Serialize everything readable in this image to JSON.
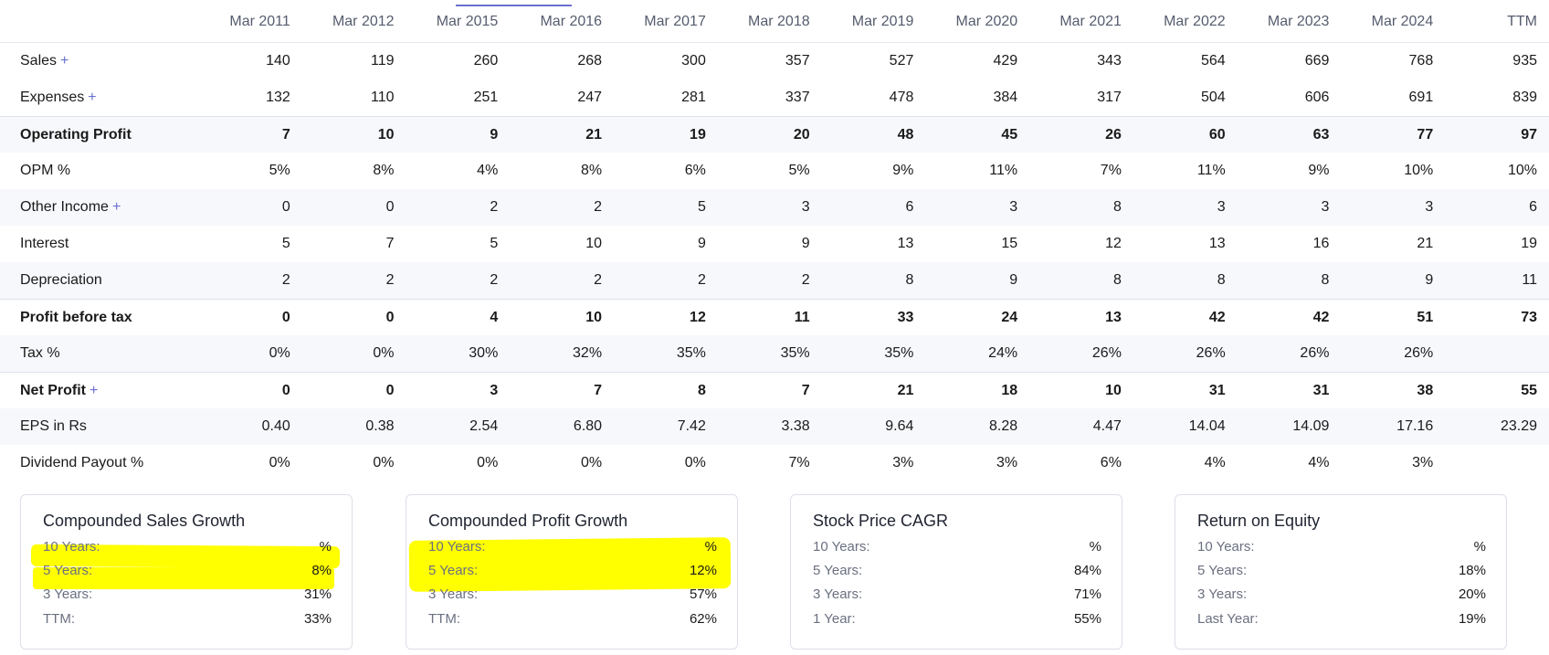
{
  "columns": [
    "Mar 2011",
    "Mar 2012",
    "Mar 2015",
    "Mar 2016",
    "Mar 2017",
    "Mar 2018",
    "Mar 2019",
    "Mar 2020",
    "Mar 2021",
    "Mar 2022",
    "Mar 2023",
    "Mar 2024",
    "TTM"
  ],
  "rows": [
    {
      "label": "Sales",
      "plus": "+",
      "values": [
        "140",
        "119",
        "260",
        "268",
        "300",
        "357",
        "527",
        "429",
        "343",
        "564",
        "669",
        "768",
        "935"
      ]
    },
    {
      "label": "Expenses",
      "plus": "+",
      "values": [
        "132",
        "110",
        "251",
        "247",
        "281",
        "337",
        "478",
        "384",
        "317",
        "504",
        "606",
        "691",
        "839"
      ]
    },
    {
      "label": "Operating Profit",
      "plus": "",
      "values": [
        "7",
        "10",
        "9",
        "21",
        "19",
        "20",
        "48",
        "45",
        "26",
        "60",
        "63",
        "77",
        "97"
      ]
    },
    {
      "label": "OPM %",
      "plus": "",
      "values": [
        "5%",
        "8%",
        "4%",
        "8%",
        "6%",
        "5%",
        "9%",
        "11%",
        "7%",
        "11%",
        "9%",
        "10%",
        "10%"
      ]
    },
    {
      "label": "Other Income",
      "plus": "+",
      "values": [
        "0",
        "0",
        "2",
        "2",
        "5",
        "3",
        "6",
        "3",
        "8",
        "3",
        "3",
        "3",
        "6"
      ]
    },
    {
      "label": "Interest",
      "plus": "",
      "values": [
        "5",
        "7",
        "5",
        "10",
        "9",
        "9",
        "13",
        "15",
        "12",
        "13",
        "16",
        "21",
        "19"
      ]
    },
    {
      "label": "Depreciation",
      "plus": "",
      "values": [
        "2",
        "2",
        "2",
        "2",
        "2",
        "2",
        "8",
        "9",
        "8",
        "8",
        "8",
        "9",
        "11"
      ]
    },
    {
      "label": "Profit before tax",
      "plus": "",
      "values": [
        "0",
        "0",
        "4",
        "10",
        "12",
        "11",
        "33",
        "24",
        "13",
        "42",
        "42",
        "51",
        "73"
      ]
    },
    {
      "label": "Tax %",
      "plus": "",
      "values": [
        "0%",
        "0%",
        "30%",
        "32%",
        "35%",
        "35%",
        "35%",
        "24%",
        "26%",
        "26%",
        "26%",
        "26%",
        ""
      ]
    },
    {
      "label": "Net Profit",
      "plus": "+",
      "values": [
        "0",
        "0",
        "3",
        "7",
        "8",
        "7",
        "21",
        "18",
        "10",
        "31",
        "31",
        "38",
        "55"
      ]
    },
    {
      "label": "EPS in Rs",
      "plus": "",
      "values": [
        "0.40",
        "0.38",
        "2.54",
        "6.80",
        "7.42",
        "3.38",
        "9.64",
        "8.28",
        "4.47",
        "14.04",
        "14.09",
        "17.16",
        "23.29"
      ]
    },
    {
      "label": "Dividend Payout %",
      "plus": "",
      "values": [
        "0%",
        "0%",
        "0%",
        "0%",
        "0%",
        "7%",
        "3%",
        "3%",
        "6%",
        "4%",
        "4%",
        "3%",
        ""
      ]
    }
  ],
  "cards": [
    {
      "title": "Compounded Sales Growth",
      "rows": [
        {
          "k": "10 Years:",
          "v": "%"
        },
        {
          "k": "5 Years:",
          "v": "8%"
        },
        {
          "k": "3 Years:",
          "v": "31%"
        },
        {
          "k": "TTM:",
          "v": "33%"
        }
      ]
    },
    {
      "title": "Compounded Profit Growth",
      "rows": [
        {
          "k": "10 Years:",
          "v": "%"
        },
        {
          "k": "5 Years:",
          "v": "12%"
        },
        {
          "k": "3 Years:",
          "v": "57%"
        },
        {
          "k": "TTM:",
          "v": "62%"
        }
      ]
    },
    {
      "title": "Stock Price CAGR",
      "rows": [
        {
          "k": "10 Years:",
          "v": "%"
        },
        {
          "k": "5 Years:",
          "v": "84%"
        },
        {
          "k": "3 Years:",
          "v": "71%"
        },
        {
          "k": "1 Year:",
          "v": "55%"
        }
      ]
    },
    {
      "title": "Return on Equity",
      "rows": [
        {
          "k": "10 Years:",
          "v": "%"
        },
        {
          "k": "5 Years:",
          "v": "18%"
        },
        {
          "k": "3 Years:",
          "v": "20%"
        },
        {
          "k": "Last Year:",
          "v": "19%"
        }
      ]
    }
  ],
  "colors": {
    "accent": "#6a6fd0",
    "highlight": "#ffff00",
    "alt_row": "#f7f8fc"
  }
}
